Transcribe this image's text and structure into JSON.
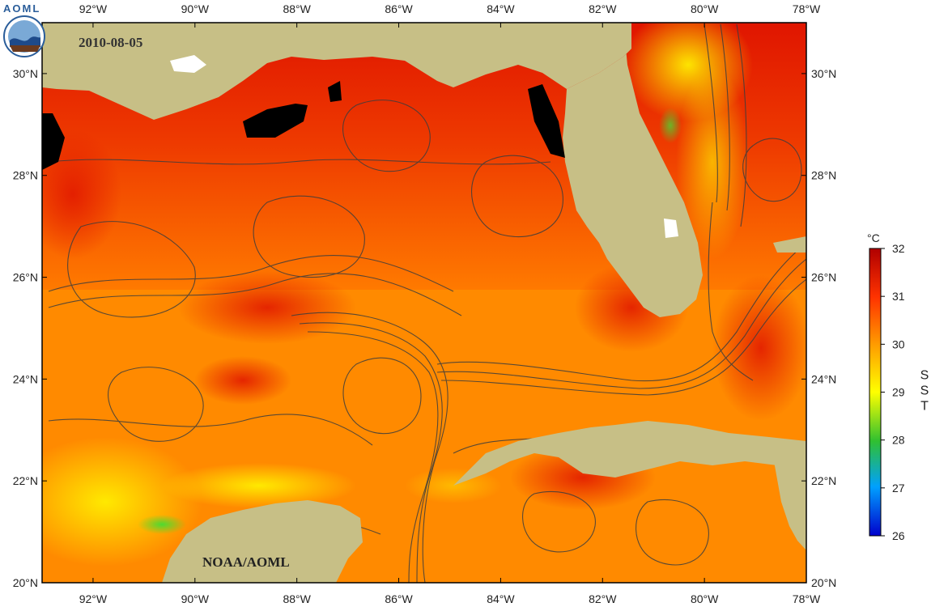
{
  "map": {
    "date": "2010-08-05",
    "credit": "NOAA/AOML",
    "logo_text": "AOML",
    "lon_ticks": [
      "92°W",
      "90°W",
      "88°W",
      "86°W",
      "84°W",
      "82°W",
      "80°W",
      "78°W"
    ],
    "lat_ticks": [
      "30°N",
      "28°N",
      "26°N",
      "24°N",
      "22°N",
      "20°N"
    ],
    "lon_range": [
      -93.0,
      -78.0
    ],
    "lat_range": [
      20.0,
      31.0
    ],
    "colors": {
      "land": "#c7bf86",
      "no_data": "#000000",
      "streamline": "#3d3d3d",
      "frame": "#000000"
    }
  },
  "colorbar": {
    "unit": "°C",
    "label": "SST",
    "ticks": [
      "32",
      "31",
      "30",
      "29",
      "28",
      "27",
      "26"
    ],
    "range": [
      26,
      32
    ],
    "gradient": [
      "#0000cc",
      "#00a0ff",
      "#30c030",
      "#ffff00",
      "#ff9900",
      "#ff3300",
      "#b00000"
    ]
  }
}
